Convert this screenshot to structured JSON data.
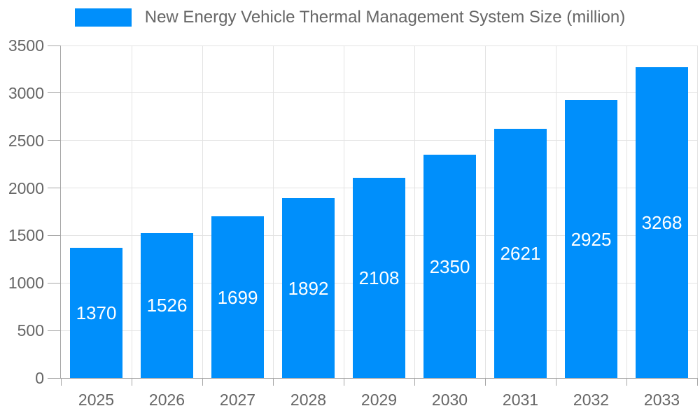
{
  "legend": {
    "label": "New Energy Vehicle Thermal Management System Size (million)"
  },
  "chart_data": {
    "type": "bar",
    "title": "New Energy Vehicle Thermal Management System Size (million)",
    "series_name": "New Energy Vehicle Thermal Management System Size (million)",
    "categories": [
      "2025",
      "2026",
      "2027",
      "2028",
      "2029",
      "2030",
      "2031",
      "2032",
      "2033"
    ],
    "values": [
      1370,
      1526,
      1699,
      1892,
      2108,
      2350,
      2621,
      2925,
      3268
    ],
    "xlabel": "",
    "ylabel": "",
    "ylim": [
      0,
      3500
    ],
    "y_ticks": [
      0,
      500,
      1000,
      1500,
      2000,
      2500,
      3000,
      3500
    ],
    "grid": true,
    "legend_position": "top",
    "bar_color": "#008FFB",
    "value_label_color": "#ffffff",
    "axis_text_color": "#666666",
    "grid_color": "#e3e3e3",
    "axis_line_color": "#a6a6a6"
  }
}
